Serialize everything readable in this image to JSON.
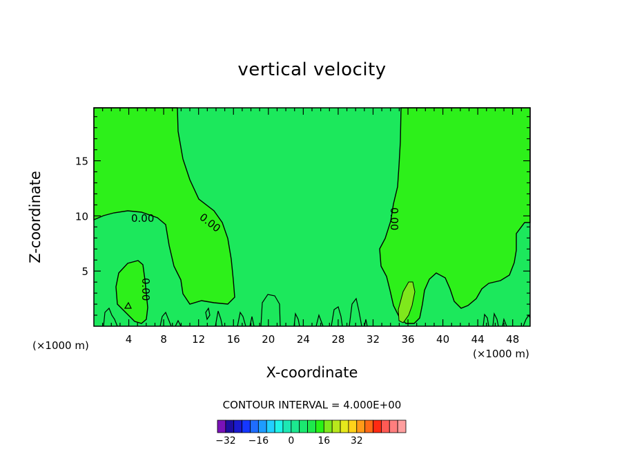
{
  "chart_data": {
    "type": "heatmap",
    "title": "vertical velocity",
    "xlabel": "X-coordinate",
    "ylabel": "Z-coordinate",
    "x_unit": "(×1000 m)",
    "y_unit": "(×1000 m)",
    "xlim": [
      0,
      50
    ],
    "ylim": [
      0,
      19.8
    ],
    "x_ticks": [
      4,
      8,
      12,
      16,
      20,
      24,
      28,
      32,
      36,
      40,
      44,
      48
    ],
    "y_ticks": [
      5,
      10,
      15
    ],
    "contour_labels": [
      "0.00",
      "0.00",
      "0.00",
      "0.00"
    ],
    "contour_interval": "CONTOUR INTERVAL = 4.000E+00",
    "colorbar": {
      "ticks": [
        -32,
        -16,
        0,
        16,
        32
      ],
      "tick_labels": [
        "−32",
        "−16",
        "0",
        "16",
        "32"
      ],
      "colors": [
        "#7a12b8",
        "#1e0ea0",
        "#1a1acf",
        "#1537ff",
        "#1f6dff",
        "#1e9cff",
        "#22cfff",
        "#1ff4e8",
        "#1de8b4",
        "#1ce890",
        "#1be870",
        "#1ee84d",
        "#28f216",
        "#7fe81c",
        "#b8e81c",
        "#e6e81c",
        "#ffd21a",
        "#ff9a18",
        "#ff6a16",
        "#ff2a12",
        "#ff5a55",
        "#ff7e7e",
        "#ff9e9e"
      ]
    },
    "regions": [
      {
        "name": "positive-left",
        "color": "#2df01a",
        "description": "weak upward motion, x 0-15, above z 6-10"
      },
      {
        "name": "positive-right",
        "color": "#2df01a",
        "description": "weak upward motion, x 35-50"
      },
      {
        "name": "negative-center",
        "color": "#1ce85c",
        "description": "weak downward motion"
      },
      {
        "name": "updraft-core",
        "color": "#7fe81c",
        "description": "stronger upward core near x 36, z 1-4"
      }
    ]
  }
}
